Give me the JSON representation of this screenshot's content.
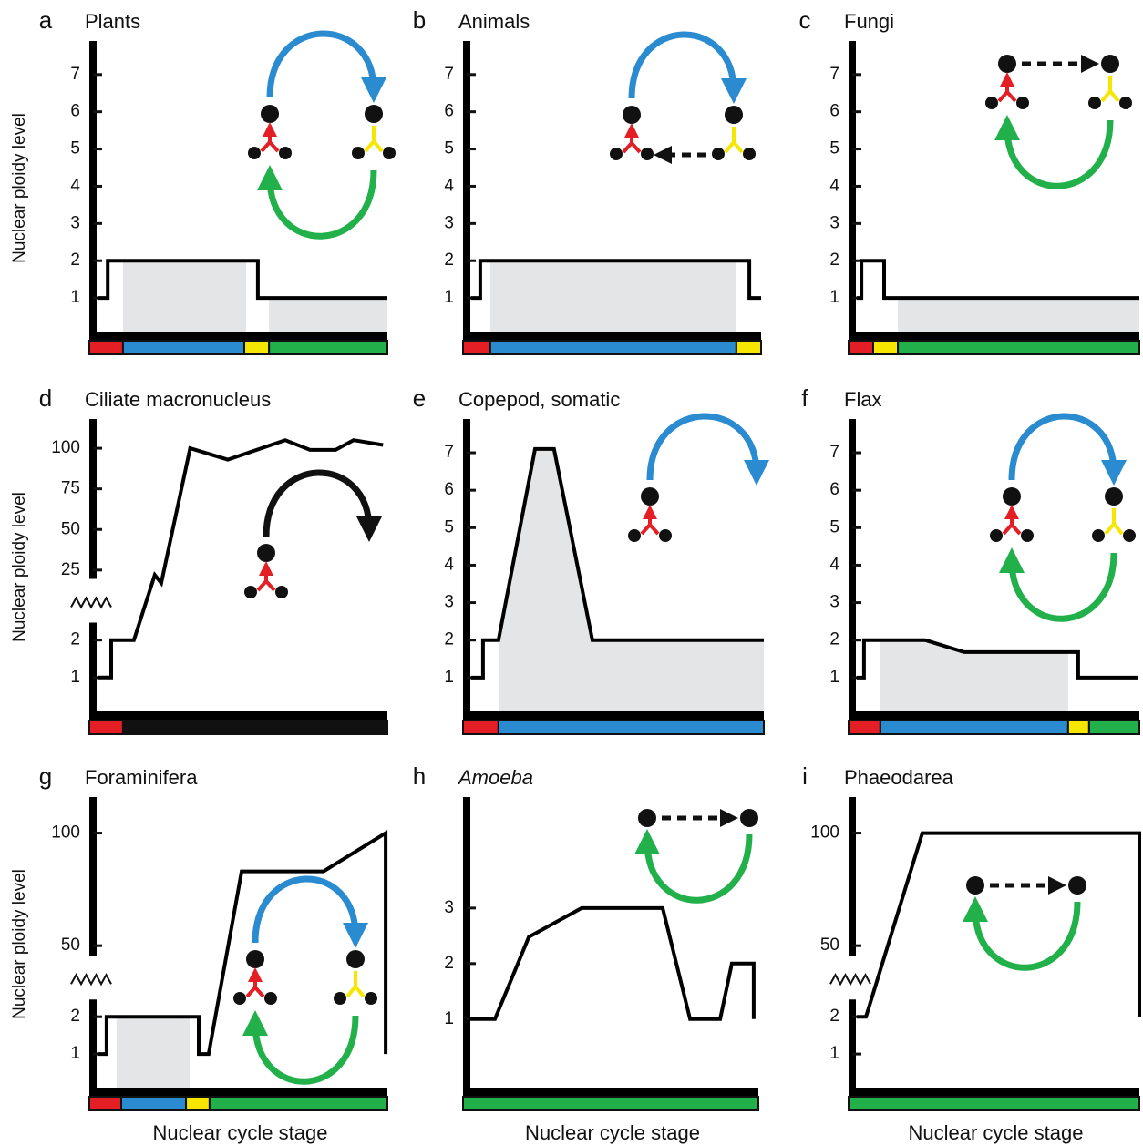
{
  "chart_data": [
    {
      "type": "line",
      "label": "a",
      "title": "Plants",
      "ylabel": "Nuclear ploidy level",
      "color": "#000000",
      "x": [
        1.5,
        5,
        5,
        56,
        56,
        100
      ],
      "values": [
        1,
        1,
        2,
        2,
        1,
        1
      ],
      "xlim": [
        0,
        100
      ],
      "ylim": [
        0,
        7.9
      ],
      "yticks": [
        1,
        2,
        3,
        4,
        5,
        6,
        7
      ],
      "shade": [
        [
          10.2,
          52
        ],
        [
          59.8,
          100
        ]
      ],
      "shade_color": "#e3e5e6",
      "stages": [
        {
          "color": "#e31e24",
          "end": 10.2
        },
        {
          "color": "#2a8bd0",
          "end": 51.4
        },
        {
          "color": "#f7e600",
          "end": 59.8
        },
        {
          "color": "#22b04b",
          "end": 100
        }
      ]
    },
    {
      "type": "line",
      "label": "b",
      "title": "Animals",
      "color": "#000000",
      "x": [
        1.5,
        4.6,
        4.6,
        96,
        96,
        100
      ],
      "values": [
        1,
        1,
        2,
        2,
        1,
        1
      ],
      "xlim": [
        0,
        100
      ],
      "ylim": [
        0,
        7.9
      ],
      "yticks": [
        1,
        2,
        3,
        4,
        5,
        6,
        7
      ],
      "shade": [
        [
          8,
          91.6
        ]
      ],
      "shade_color": "#e3e5e6",
      "stages": [
        {
          "color": "#e31e24",
          "end": 8
        },
        {
          "color": "#2a8bd0",
          "end": 91.6
        },
        {
          "color": "#f7e600",
          "end": 100
        }
      ]
    },
    {
      "type": "line",
      "label": "c",
      "title": "Fungi",
      "color": "#000000",
      "x": [
        1.6,
        3.2,
        3.2,
        11.1,
        11.1,
        100
      ],
      "values": [
        1,
        1,
        2,
        2,
        1,
        1
      ],
      "xlim": [
        0,
        100
      ],
      "ylim": [
        0,
        7.9
      ],
      "yticks": [
        1,
        2,
        3,
        4,
        5,
        6,
        7
      ],
      "shade": [
        [
          15.9,
          100
        ]
      ],
      "shade_color": "#e3e5e6",
      "stages": [
        {
          "color": "#e31e24",
          "end": 7.3
        },
        {
          "color": "#f7e600",
          "end": 15.9
        },
        {
          "color": "#22b04b",
          "end": 100
        }
      ]
    },
    {
      "type": "line",
      "label": "d",
      "title": "Ciliate macronucleus",
      "ylabel": "Nuclear ploidy level",
      "color": "#000000",
      "x": [
        1.5,
        6.2,
        6.2,
        13.9,
        21,
        23.2,
        33,
        45.8,
        65.3,
        73.7,
        82.4,
        88.5,
        98.5
      ],
      "values": [
        1,
        1,
        2,
        2,
        22,
        17,
        100,
        93,
        105,
        99,
        99,
        105,
        102
      ],
      "xlim": [
        0,
        100
      ],
      "ylim": [
        0,
        118
      ],
      "ybreak": [
        3,
        5
      ],
      "yticks": [
        1,
        2,
        25,
        50,
        75,
        100
      ],
      "stages": [
        {
          "color": "#e31e24",
          "end": 10.2
        },
        {
          "color": "#111111",
          "end": 100
        }
      ]
    },
    {
      "type": "line",
      "label": "e",
      "title": "Copepod, somatic",
      "color": "#000000",
      "x": [
        1.5,
        5.5,
        5.5,
        10.7,
        23,
        29.4,
        42.3,
        100
      ],
      "values": [
        1,
        1,
        2,
        2,
        7.1,
        7.1,
        2,
        2
      ],
      "xlim": [
        0,
        100
      ],
      "ylim": [
        0,
        7.9
      ],
      "yticks": [
        1,
        2,
        3,
        4,
        5,
        6,
        7
      ],
      "shade": [
        [
          10.7,
          100
        ]
      ],
      "shade_color": "#e3e5e6",
      "stages": [
        {
          "color": "#e31e24",
          "end": 10.7
        },
        {
          "color": "#2a8bd0",
          "end": 100
        }
      ]
    },
    {
      "type": "line",
      "label": "f",
      "title": "Flax",
      "color": "#000000",
      "x": [
        1.6,
        4.1,
        4.1,
        25.4,
        39,
        78.7,
        78.7,
        99.4
      ],
      "values": [
        1,
        1,
        2,
        2,
        1.68,
        1.68,
        1,
        1
      ],
      "xlim": [
        0,
        100
      ],
      "ylim": [
        0,
        7.9
      ],
      "yticks": [
        1,
        2,
        3,
        4,
        5,
        6,
        7
      ],
      "shade": [
        [
          9.8,
          75.2
        ]
      ],
      "shade_color": "#e3e5e6",
      "stages": [
        {
          "color": "#e31e24",
          "end": 9.8
        },
        {
          "color": "#2a8bd0",
          "end": 75.2
        },
        {
          "color": "#f7e600",
          "end": 82.5
        },
        {
          "color": "#22b04b",
          "end": 100
        }
      ]
    },
    {
      "type": "line",
      "label": "g",
      "title": "Foraminifera",
      "ylabel": "Nuclear ploidy level",
      "xlabel": "Nuclear cycle stage",
      "color": "#000000",
      "x": [
        1.5,
        4.6,
        4.6,
        35.9,
        35.9,
        39.3,
        50.5,
        78.3,
        99.4,
        99.4
      ],
      "values": [
        1,
        1,
        2,
        2,
        1,
        1,
        83,
        83,
        100,
        1
      ],
      "xlim": [
        0,
        100
      ],
      "ylim": [
        0,
        116
      ],
      "ybreak": [
        3,
        35
      ],
      "yticks": [
        1,
        2,
        50,
        100
      ],
      "shade": [
        [
          8,
          32.8
        ]
      ],
      "shade_color": "#e3e5e6",
      "stages": [
        {
          "color": "#e31e24",
          "end": 9.6
        },
        {
          "color": "#2a8bd0",
          "end": 31.6
        },
        {
          "color": "#f7e600",
          "end": 39.6
        },
        {
          "color": "#22b04b",
          "end": 100
        }
      ]
    },
    {
      "type": "line",
      "label": "h",
      "title": "Amoeba",
      "title_italic": true,
      "xlabel": "Nuclear cycle stage",
      "color": "#000000",
      "x": [
        0.6,
        9.7,
        21.3,
        39.4,
        67.2,
        76.6,
        86.9,
        90.9,
        98.4,
        98.4
      ],
      "values": [
        1,
        1,
        2.48,
        3,
        3,
        1,
        1,
        2,
        2,
        1
      ],
      "xlim": [
        0,
        100
      ],
      "ylim": [
        -0.3,
        5
      ],
      "yticks": [
        1,
        2,
        3
      ],
      "stages": [
        {
          "color": "#22b04b",
          "end": 100
        }
      ]
    },
    {
      "type": "line",
      "label": "i",
      "title": "Phaeodarea",
      "xlabel": "Nuclear cycle stage",
      "color": "#000000",
      "x": [
        1.6,
        4.8,
        24.4,
        100,
        100
      ],
      "values": [
        2,
        2,
        100,
        100,
        2
      ],
      "xlim": [
        0,
        100
      ],
      "ylim": [
        0,
        116
      ],
      "ybreak": [
        3,
        35
      ],
      "yticks": [
        1,
        2,
        50,
        100
      ],
      "stages": [
        {
          "color": "#22b04b",
          "end": 100
        }
      ]
    }
  ]
}
